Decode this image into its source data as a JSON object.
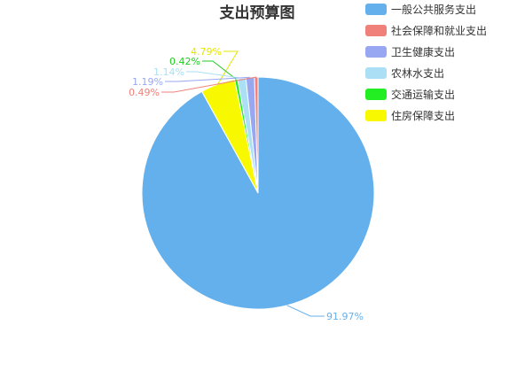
{
  "chart_data": {
    "type": "pie",
    "title": "支出预算图",
    "legend_position": "top-right",
    "categories": [
      "一般公共服务支出",
      "社会保障和就业支出",
      "卫生健康支出",
      "农林水支出",
      "交通运输支出",
      "住房保障支出"
    ],
    "values": [
      91.97,
      0.49,
      1.19,
      1.14,
      0.42,
      4.79
    ],
    "labels": [
      "91.97%",
      "0.49%",
      "1.19%",
      "1.14%",
      "0.42%",
      "4.79%"
    ],
    "colors": [
      "#64b0ec",
      "#f0817a",
      "#98a7f2",
      "#aadff5",
      "#22ee22",
      "#f8f800"
    ],
    "label_colors": [
      "#64b0ec",
      "#f0817a",
      "#98a7f2",
      "#aadff5",
      "#22cc22",
      "#e6e600"
    ]
  }
}
